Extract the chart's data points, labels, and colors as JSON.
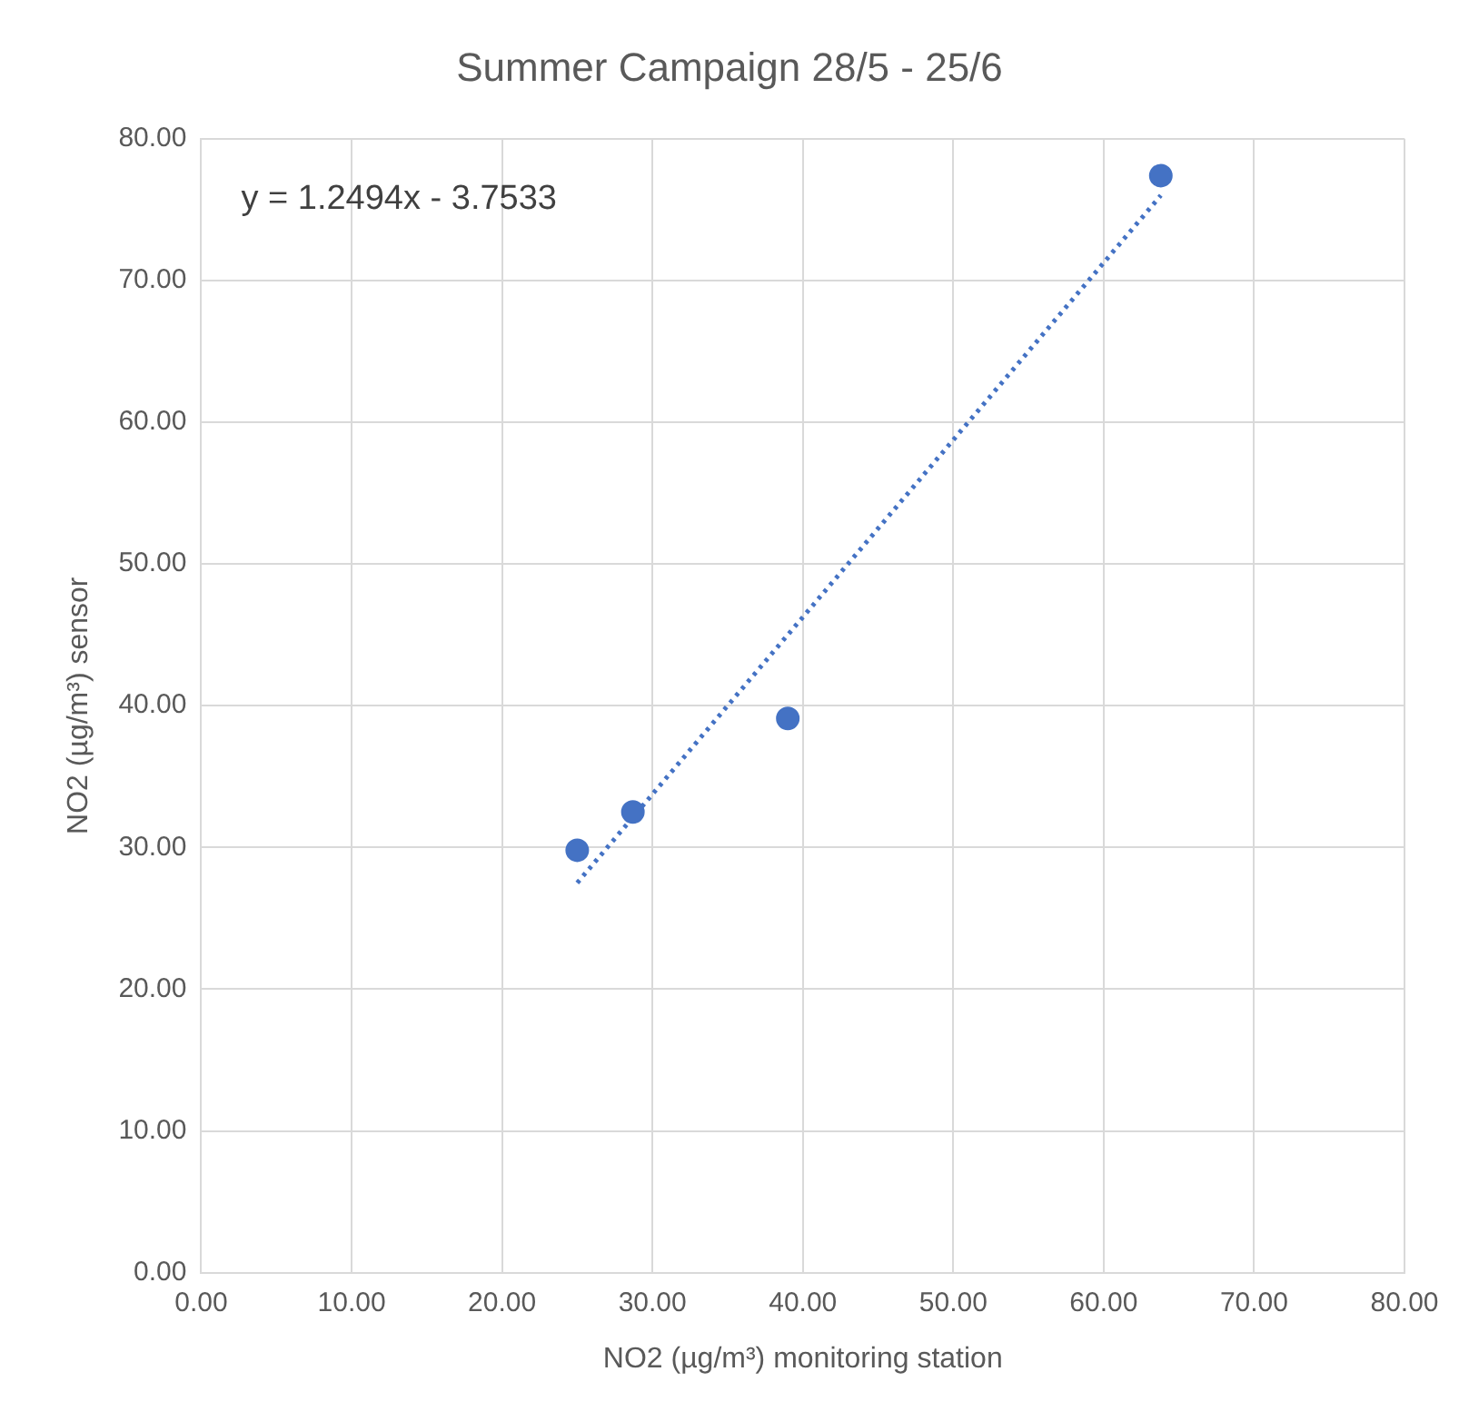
{
  "chart_data": {
    "type": "scatter",
    "title": "Summer Campaign 28/5 - 25/6",
    "xlabel": "NO2 (µg/m³) monitoring station",
    "ylabel": "NO2 (µg/m³) sensor",
    "series": [
      {
        "type": "scatter",
        "color": "#4472c4",
        "x": [
          25.0,
          28.7,
          39.0,
          63.8
        ],
        "values": [
          29.8,
          32.5,
          39.1,
          77.4
        ],
        "marker": "circle"
      },
      {
        "type": "line",
        "color": "#4472c4",
        "x": [
          25.0,
          63.8
        ],
        "values": [
          27.5,
          76.0
        ],
        "line_style": "dotted",
        "marker": "none"
      }
    ],
    "xlim": [
      0,
      80
    ],
    "xticks": [
      {
        "value": 0,
        "label": "0.00"
      },
      {
        "value": 10,
        "label": "10.00"
      },
      {
        "value": 20,
        "label": "20.00"
      },
      {
        "value": 30,
        "label": "30.00"
      },
      {
        "value": 40,
        "label": "40.00"
      },
      {
        "value": 50,
        "label": "50.00"
      },
      {
        "value": 60,
        "label": "60.00"
      },
      {
        "value": 70,
        "label": "70.00"
      },
      {
        "value": 80,
        "label": "80.00"
      }
    ],
    "ylim": [
      0,
      80
    ],
    "yticks": [
      {
        "value": 0,
        "label": "0.00"
      },
      {
        "value": 10,
        "label": "10.00"
      },
      {
        "value": 20,
        "label": "20.00"
      },
      {
        "value": 30,
        "label": "30.00"
      },
      {
        "value": 40,
        "label": "40.00"
      },
      {
        "value": 50,
        "label": "50.00"
      },
      {
        "value": 60,
        "label": "60.00"
      },
      {
        "value": 70,
        "label": "70.00"
      },
      {
        "value": 80,
        "label": "80.00"
      }
    ],
    "grid": true,
    "legend": false,
    "annotations": [
      "y = 1.2494x - 3.7533"
    ]
  }
}
